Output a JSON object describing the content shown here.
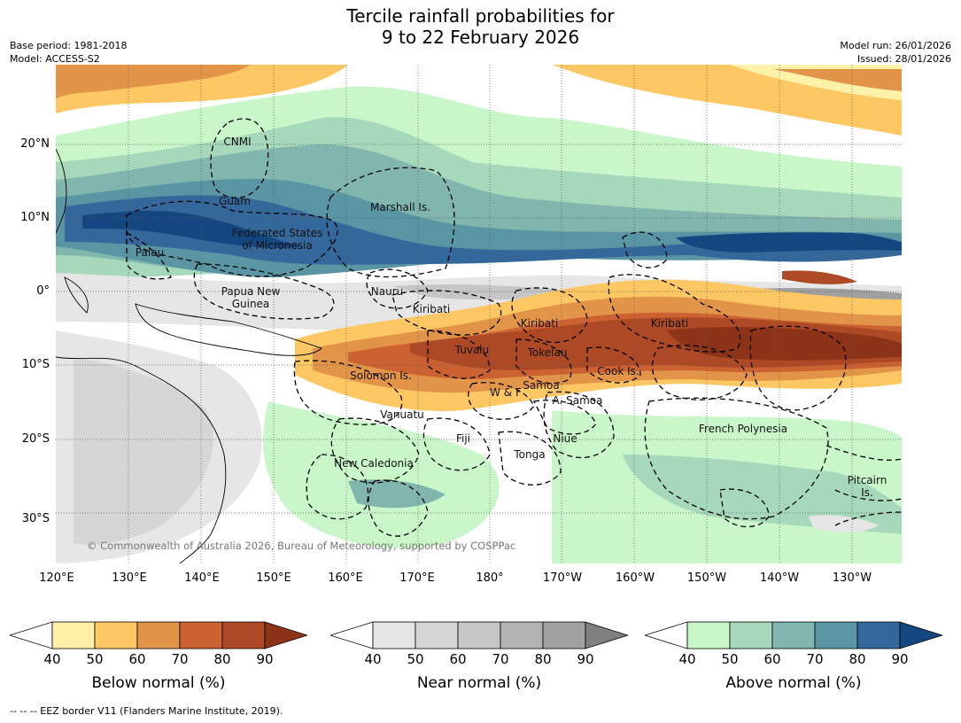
{
  "header": {
    "title_line1": "Tercile rainfall probabilities for",
    "title_line2": "9 to 22 February 2026",
    "base_period": "Base period: 1981-2018",
    "model": "Model: ACCESS-S2",
    "model_run": "Model run: 26/01/2026",
    "issued": "Issued: 28/01/2026"
  },
  "map": {
    "lat_labels": [
      "20°N",
      "10°N",
      "0°",
      "10°S",
      "20°S",
      "30°S"
    ],
    "lon_labels": [
      "120°E",
      "130°E",
      "140°E",
      "150°E",
      "160°E",
      "170°E",
      "180°",
      "170°W",
      "160°W",
      "150°W",
      "140°W",
      "130°W"
    ],
    "regions": {
      "cnmi": "CNMI",
      "guam": "Guam",
      "marshall": "Marshall Is.",
      "fsm_1": "Federated States",
      "fsm_2": "of Micronesia",
      "palau": "Palau",
      "png_1": "Papua New",
      "png_2": "Guinea",
      "nauru": "Nauru",
      "kiribati_w": "Kiribati",
      "kiribati_c": "Kiribati",
      "kiribati_e": "Kiribati",
      "tuvalu": "Tuvalu",
      "tokelau": "Tokelau",
      "solomon": "Solomon Is.",
      "cook": "Cook Is.",
      "wf": "W & F",
      "samoa": "Samoa",
      "asamoa": "A. Samoa",
      "vanuatu": "Vanuatu",
      "fiji": "Fiji",
      "niue": "Niue",
      "french_polynesia": "French Polynesia",
      "tonga": "Tonga",
      "new_caledonia": "New Caledonia",
      "pitcairn_1": "Pitcairn",
      "pitcairn_2": "Is."
    },
    "copyright": "© Commonwealth of Australia 2026, Bureau of Meteorology, supported by COSPPac"
  },
  "colorbars": [
    {
      "title": "Below normal (%)",
      "ticks": [
        "40",
        "50",
        "60",
        "70",
        "80",
        "90"
      ],
      "colors": [
        "#fff1a8",
        "#fdc864",
        "#e29448",
        "#cc6231",
        "#ad4a25",
        "#8c3318"
      ]
    },
    {
      "title": "Near normal (%)",
      "ticks": [
        "40",
        "50",
        "60",
        "70",
        "80",
        "90"
      ],
      "colors": [
        "#e6e6e6",
        "#d6d6d6",
        "#c6c6c6",
        "#b3b3b3",
        "#a0a0a0",
        "#808080"
      ]
    },
    {
      "title": "Above normal (%)",
      "ticks": [
        "40",
        "50",
        "60",
        "70",
        "80",
        "90"
      ],
      "colors": [
        "#c9f7c9",
        "#a6d8bb",
        "#80b6ae",
        "#5a95a4",
        "#34679a",
        "#14467f"
      ]
    }
  ],
  "footnote": "--  --  -- EEZ border V11 (Flanders Marine Institute, 2019)."
}
